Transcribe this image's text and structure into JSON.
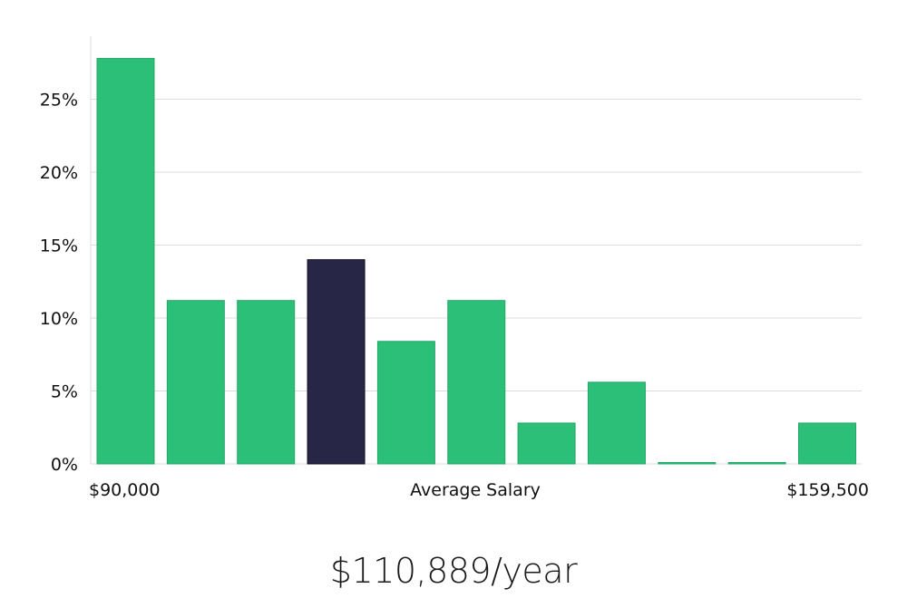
{
  "chart_data": {
    "type": "bar",
    "xlabel": "Average Salary",
    "x_range_labels": [
      "$90,000",
      "$159,500"
    ],
    "ylim": [
      0,
      28
    ],
    "yticks": [
      0,
      5,
      10,
      15,
      20,
      25
    ],
    "ytick_labels": [
      "0%",
      "5%",
      "10%",
      "15%",
      "20%",
      "25%"
    ],
    "values": [
      27.8,
      11.2,
      11.2,
      14.0,
      8.4,
      11.2,
      2.8,
      5.6,
      0,
      0,
      2.8
    ],
    "highlight_index": 3,
    "grid": true
  },
  "colors": {
    "bar": "#2bbf78",
    "bar_stroke": "#25a868",
    "highlight": "#282646",
    "highlight_stroke": "#111026"
  },
  "summary": {
    "salary": "$110,889/year"
  }
}
